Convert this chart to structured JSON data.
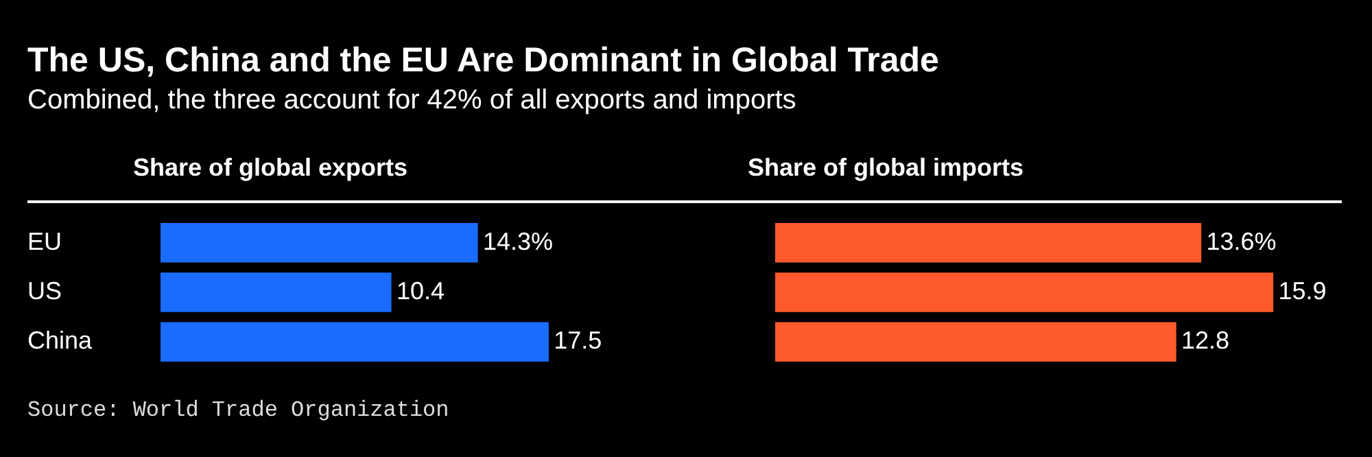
{
  "chart_data": [
    {
      "type": "other",
      "title": "The US, China and the EU Are Dominant in Global Trade",
      "subtitle": "Combined, the three account for 42% of all exports and imports",
      "annotations": [
        "Source: World Trade Organization"
      ]
    },
    {
      "type": "bar",
      "orientation": "horizontal",
      "title": "Share of global exports",
      "categories": [
        "EU",
        "US",
        "China"
      ],
      "values": [
        14.3,
        10.4,
        17.5
      ],
      "value_labels": [
        "14.3%",
        "10.4",
        "17.5"
      ],
      "color": "#1a6cff",
      "tick_labels": "y"
    },
    {
      "type": "bar",
      "orientation": "horizontal",
      "title": "Share of global imports",
      "categories": [
        null,
        null,
        null
      ],
      "values": [
        13.6,
        15.9,
        12.8
      ],
      "value_labels": [
        "13.6%",
        "15.9",
        "12.8"
      ],
      "color": "#ff5a2c",
      "tick_labels": false
    }
  ]
}
